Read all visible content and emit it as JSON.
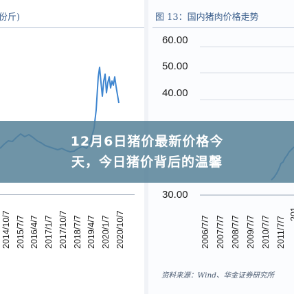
{
  "left_panel": {
    "title_fragment": "份斤)",
    "x_ticks": [
      "2014/10/7",
      "2015/7/7",
      "2016/4/7",
      "2017/1/7",
      "2017/10/7",
      "2018/7/7",
      "2019/4/7",
      "2020/1/7",
      "2020/10/7"
    ]
  },
  "right_panel": {
    "title": "图 13：国内猪肉价格走势",
    "y_ticks": [
      "60.00",
      "50.00",
      "40.00",
      "30.00"
    ],
    "x_ticks": [
      "2006/7/7",
      "2007/7/7",
      "2008/7/7",
      "2009/7/7",
      "2010/7/7",
      "2011/7/7"
    ],
    "x_tick_partial": "201",
    "source": "资料来源：Wind、华金证券研究所"
  },
  "banner": {
    "line1": "12月6日猪价最新价格今",
    "line2": "天，今日猪价背后的温馨"
  },
  "colors": {
    "series_line": "#3f86d0",
    "banner_bg": "#548096",
    "title_text": "#3a5e8c"
  }
}
